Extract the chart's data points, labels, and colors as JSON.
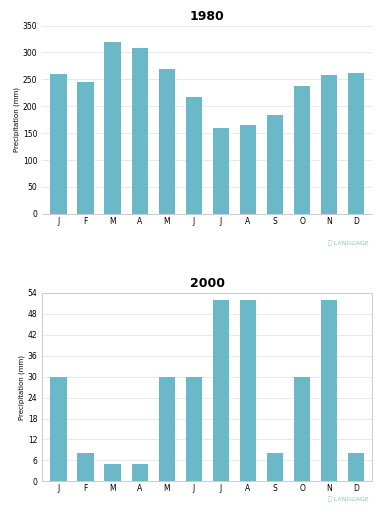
{
  "chart1": {
    "title": "1980",
    "months": [
      "J",
      "F",
      "M",
      "A",
      "M",
      "J",
      "J",
      "A",
      "S",
      "O",
      "N",
      "D"
    ],
    "values": [
      260,
      245,
      320,
      308,
      270,
      218,
      160,
      165,
      183,
      238,
      258,
      262
    ],
    "ylim": [
      0,
      350
    ],
    "yticks": [
      0,
      50,
      100,
      150,
      200,
      250,
      300,
      350
    ],
    "ylabel": "Precipitation (mm)",
    "has_box": false
  },
  "chart2": {
    "title": "2000",
    "months": [
      "J",
      "F",
      "M",
      "A",
      "M",
      "J",
      "J",
      "A",
      "S",
      "O",
      "N",
      "D"
    ],
    "values": [
      30,
      8,
      5,
      5,
      30,
      30,
      52,
      52,
      8,
      30,
      52,
      8
    ],
    "ylim": [
      0,
      54
    ],
    "yticks": [
      0,
      6,
      12,
      18,
      24,
      30,
      36,
      42,
      48,
      54
    ],
    "ylabel": "Precipitation (mm)",
    "has_box": true
  },
  "bar_color": "#6ab8c8",
  "bar_edge_color": "none",
  "bg_color": "#ffffff",
  "grid_color": "#e0e0e0",
  "title_fontsize": 9,
  "axis_fontsize": 5.5,
  "ylabel_fontsize": 5,
  "watermark_text": "LANGUAGE",
  "watermark_color": "#7abccc"
}
